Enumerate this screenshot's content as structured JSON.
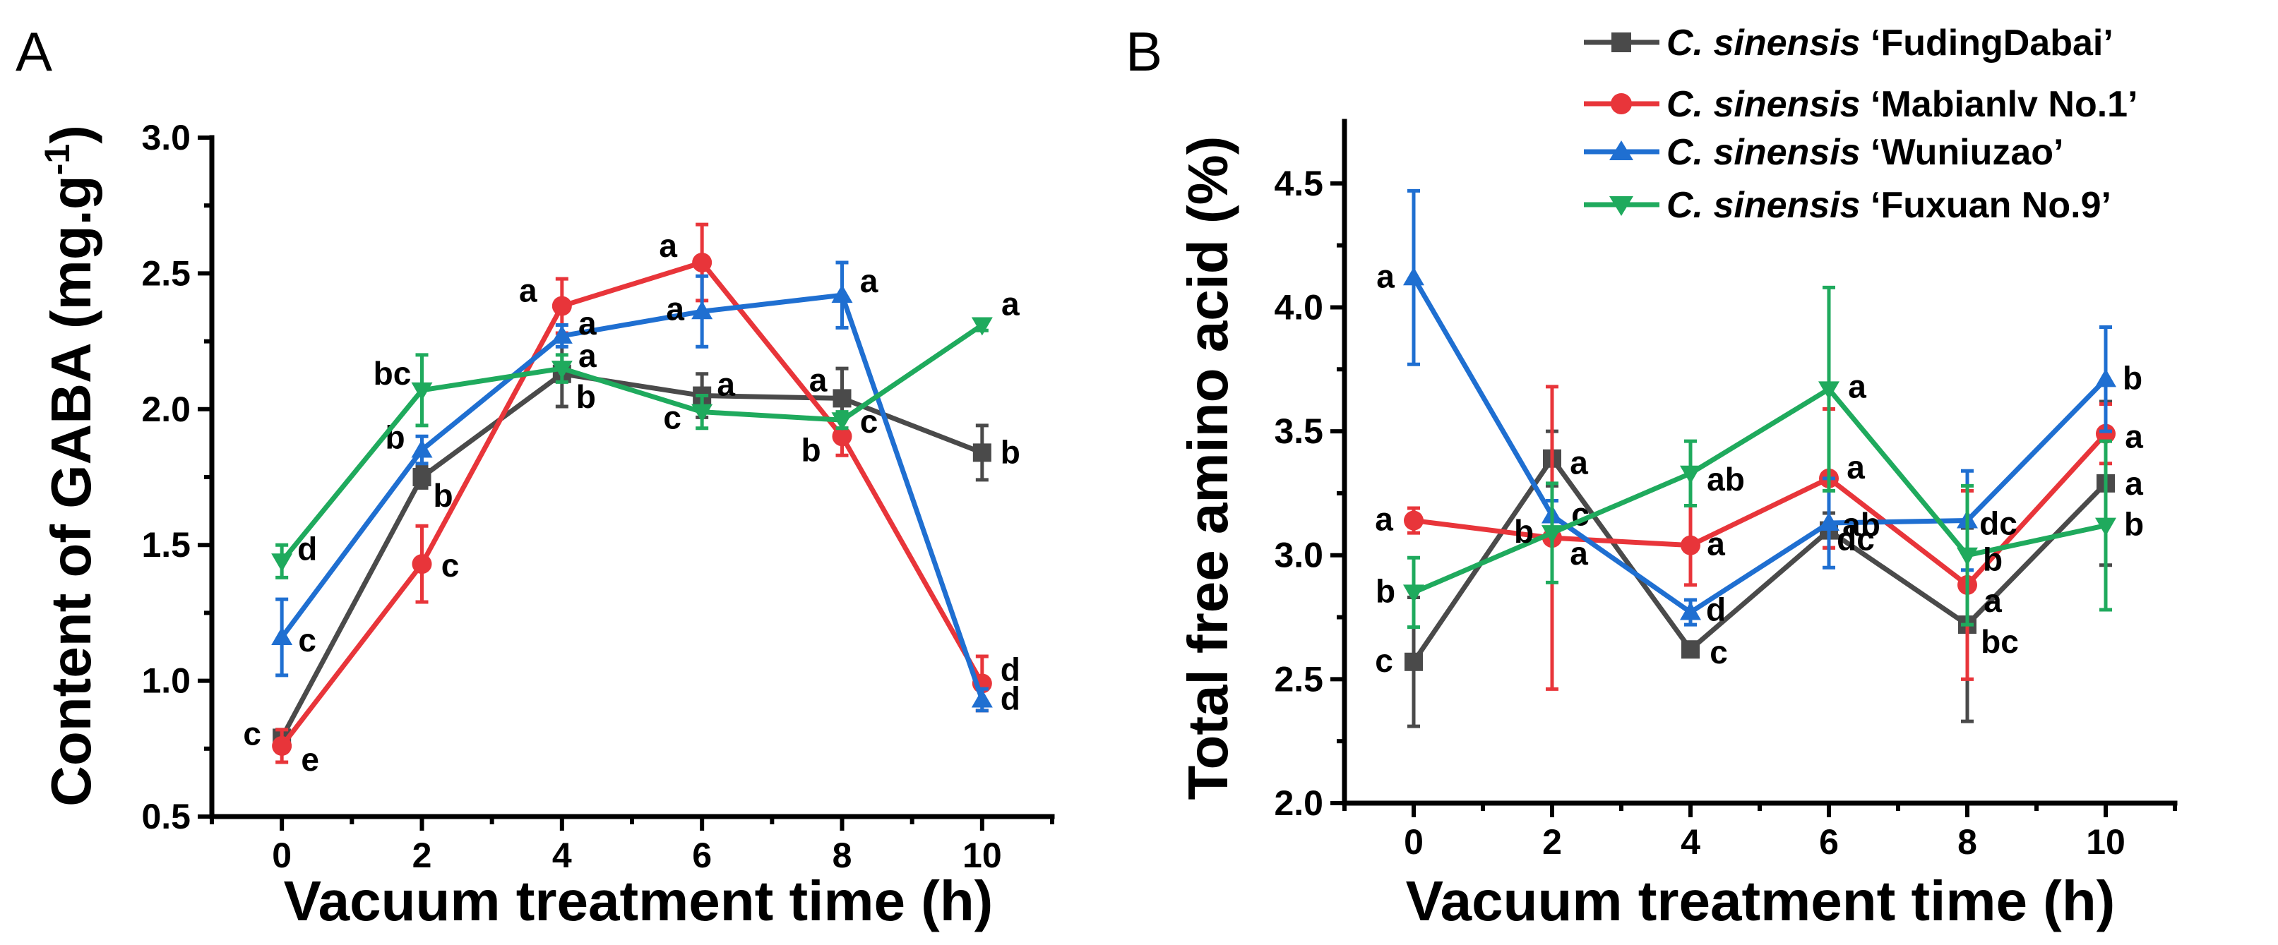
{
  "chart_data": [
    {
      "panel": "A",
      "type": "line",
      "xlabel": "Vacuum treatment time (h)",
      "ylabel": "Content of GABA (mg.g",
      "ylabel_sup": "-1",
      "ylabel_close": ")",
      "x": [
        0,
        2,
        4,
        6,
        8,
        10
      ],
      "xticks": [
        "0",
        "2",
        "4",
        "6",
        "8",
        "10"
      ],
      "xlim": [
        -1,
        11
      ],
      "ylim": [
        0.5,
        3.0
      ],
      "yticks": [
        "0.5",
        "1.0",
        "1.5",
        "2.0",
        "2.5",
        "3.0"
      ],
      "series": [
        {
          "name": "FudingDabai",
          "color": "#4a4a4a",
          "marker": "square",
          "values": [
            0.79,
            1.75,
            2.13,
            2.05,
            2.04,
            1.84
          ],
          "errors": [
            0.03,
            0.04,
            0.12,
            0.08,
            0.11,
            0.1
          ],
          "letters": [
            "c",
            "b",
            "b",
            "a",
            "a",
            "b"
          ]
        },
        {
          "name": "Mabianlv No.1",
          "color": "#e8353a",
          "marker": "circle",
          "values": [
            0.76,
            1.43,
            2.38,
            2.54,
            1.9,
            0.99
          ],
          "errors": [
            0.06,
            0.14,
            0.1,
            0.14,
            0.07,
            0.1
          ],
          "letters": [
            "e",
            "c",
            "a",
            "a",
            "b",
            "d"
          ]
        },
        {
          "name": "Wuniuzao",
          "color": "#1f6fd1",
          "marker": "triangle-up",
          "values": [
            1.16,
            1.85,
            2.27,
            2.36,
            2.42,
            0.93
          ],
          "errors": [
            0.14,
            0.05,
            0.04,
            0.13,
            0.12,
            0.04
          ],
          "letters": [
            "c",
            "b",
            "a",
            "a",
            "a",
            "d"
          ]
        },
        {
          "name": "Fuxuan No.9",
          "color": "#1faa5d",
          "marker": "triangle-down",
          "values": [
            1.44,
            2.07,
            2.15,
            1.99,
            1.96,
            2.31
          ],
          "errors": [
            0.06,
            0.13,
            0.05,
            0.06,
            0.03,
            0.02
          ],
          "letters": [
            "d",
            "bc",
            "a",
            "c",
            "c",
            "a"
          ]
        }
      ]
    },
    {
      "panel": "B",
      "type": "line",
      "xlabel": "Vacuum treatment time (h)",
      "ylabel": "Total free amino acid (%)",
      "x": [
        0,
        2,
        4,
        6,
        8,
        10
      ],
      "xticks": [
        "0",
        "2",
        "4",
        "6",
        "8",
        "10"
      ],
      "xlim": [
        -1,
        11
      ],
      "ylim": [
        2.0,
        4.75
      ],
      "yticks": [
        "2.0",
        "2.5",
        "3.0",
        "3.5",
        "4.0",
        "4.5"
      ],
      "series": [
        {
          "name": "FudingDabai",
          "color": "#4a4a4a",
          "marker": "square",
          "values": [
            2.57,
            3.39,
            2.62,
            3.1,
            2.72,
            3.29
          ],
          "errors": [
            0.26,
            0.11,
            0.02,
            0.07,
            0.39,
            0.33
          ],
          "letters": [
            "c",
            "a",
            "c",
            "dc",
            "bc",
            "a"
          ]
        },
        {
          "name": "Mabianlv No.1",
          "color": "#e8353a",
          "marker": "circle",
          "values": [
            3.14,
            3.07,
            3.04,
            3.31,
            2.88,
            3.49
          ],
          "errors": [
            0.05,
            0.61,
            0.16,
            0.28,
            0.38,
            0.12
          ],
          "letters": [
            "a",
            "a",
            "a",
            "a",
            "a",
            "a"
          ]
        },
        {
          "name": "Wuniuzao",
          "color": "#1f6fd1",
          "marker": "triangle-up",
          "values": [
            4.12,
            3.16,
            2.77,
            3.13,
            3.14,
            3.71
          ],
          "errors": [
            0.35,
            0.06,
            0.05,
            0.18,
            0.2,
            0.21
          ],
          "letters": [
            "a",
            "c",
            "d",
            "ab",
            "dc",
            "b"
          ]
        },
        {
          "name": "Fuxuan No.9",
          "color": "#1faa5d",
          "marker": "triangle-down",
          "values": [
            2.85,
            3.09,
            3.33,
            3.67,
            3.0,
            3.12
          ],
          "errors": [
            0.14,
            0.2,
            0.13,
            0.41,
            0.28,
            0.34
          ],
          "letters": [
            "b",
            "b",
            "ab",
            "a",
            "b",
            "b"
          ]
        }
      ]
    }
  ],
  "legend": {
    "prefix": "C. sinensis",
    "entries": [
      "‘FudingDabai’",
      "‘Mabianlv No.1’",
      "‘Wuniuzao’",
      "‘Fuxuan No.9’"
    ]
  }
}
